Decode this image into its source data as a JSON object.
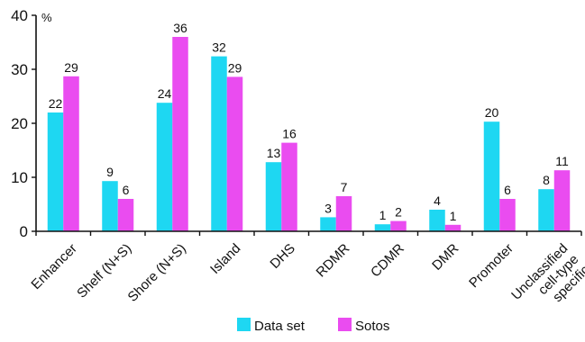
{
  "chart_data": {
    "type": "bar",
    "title": "",
    "xlabel": "",
    "ylabel": "%",
    "ylim": [
      0,
      40
    ],
    "yticks": [
      0,
      10,
      20,
      30,
      40
    ],
    "grid": false,
    "legend_position": "bottom",
    "categories": [
      [
        "Enhancer"
      ],
      [
        "Shelf (N+S)"
      ],
      [
        "Shore (N+S)"
      ],
      [
        "Island"
      ],
      [
        "DHS"
      ],
      [
        "RDMR"
      ],
      [
        "CDMR"
      ],
      [
        "DMR"
      ],
      [
        "Promoter"
      ],
      [
        "Unclassified",
        "cell-type",
        "specific"
      ]
    ],
    "series": [
      {
        "name": "Data set",
        "color": "#1ed7f2",
        "values": [
          22,
          9.3,
          23.8,
          32.4,
          12.8,
          2.6,
          1.3,
          4.0,
          20.3,
          7.8
        ],
        "labels": [
          "22",
          "9",
          "24",
          "32",
          "13",
          "3",
          "1",
          "4",
          "20",
          "8"
        ]
      },
      {
        "name": "Sotos",
        "color": "#ea4cf0",
        "values": [
          28.7,
          6.0,
          36.0,
          28.6,
          16.4,
          6.5,
          1.9,
          1.2,
          6.0,
          11.3
        ],
        "labels": [
          "29",
          "6",
          "36",
          "29",
          "16",
          "7",
          "2",
          "1",
          "6",
          "11"
        ]
      }
    ]
  }
}
